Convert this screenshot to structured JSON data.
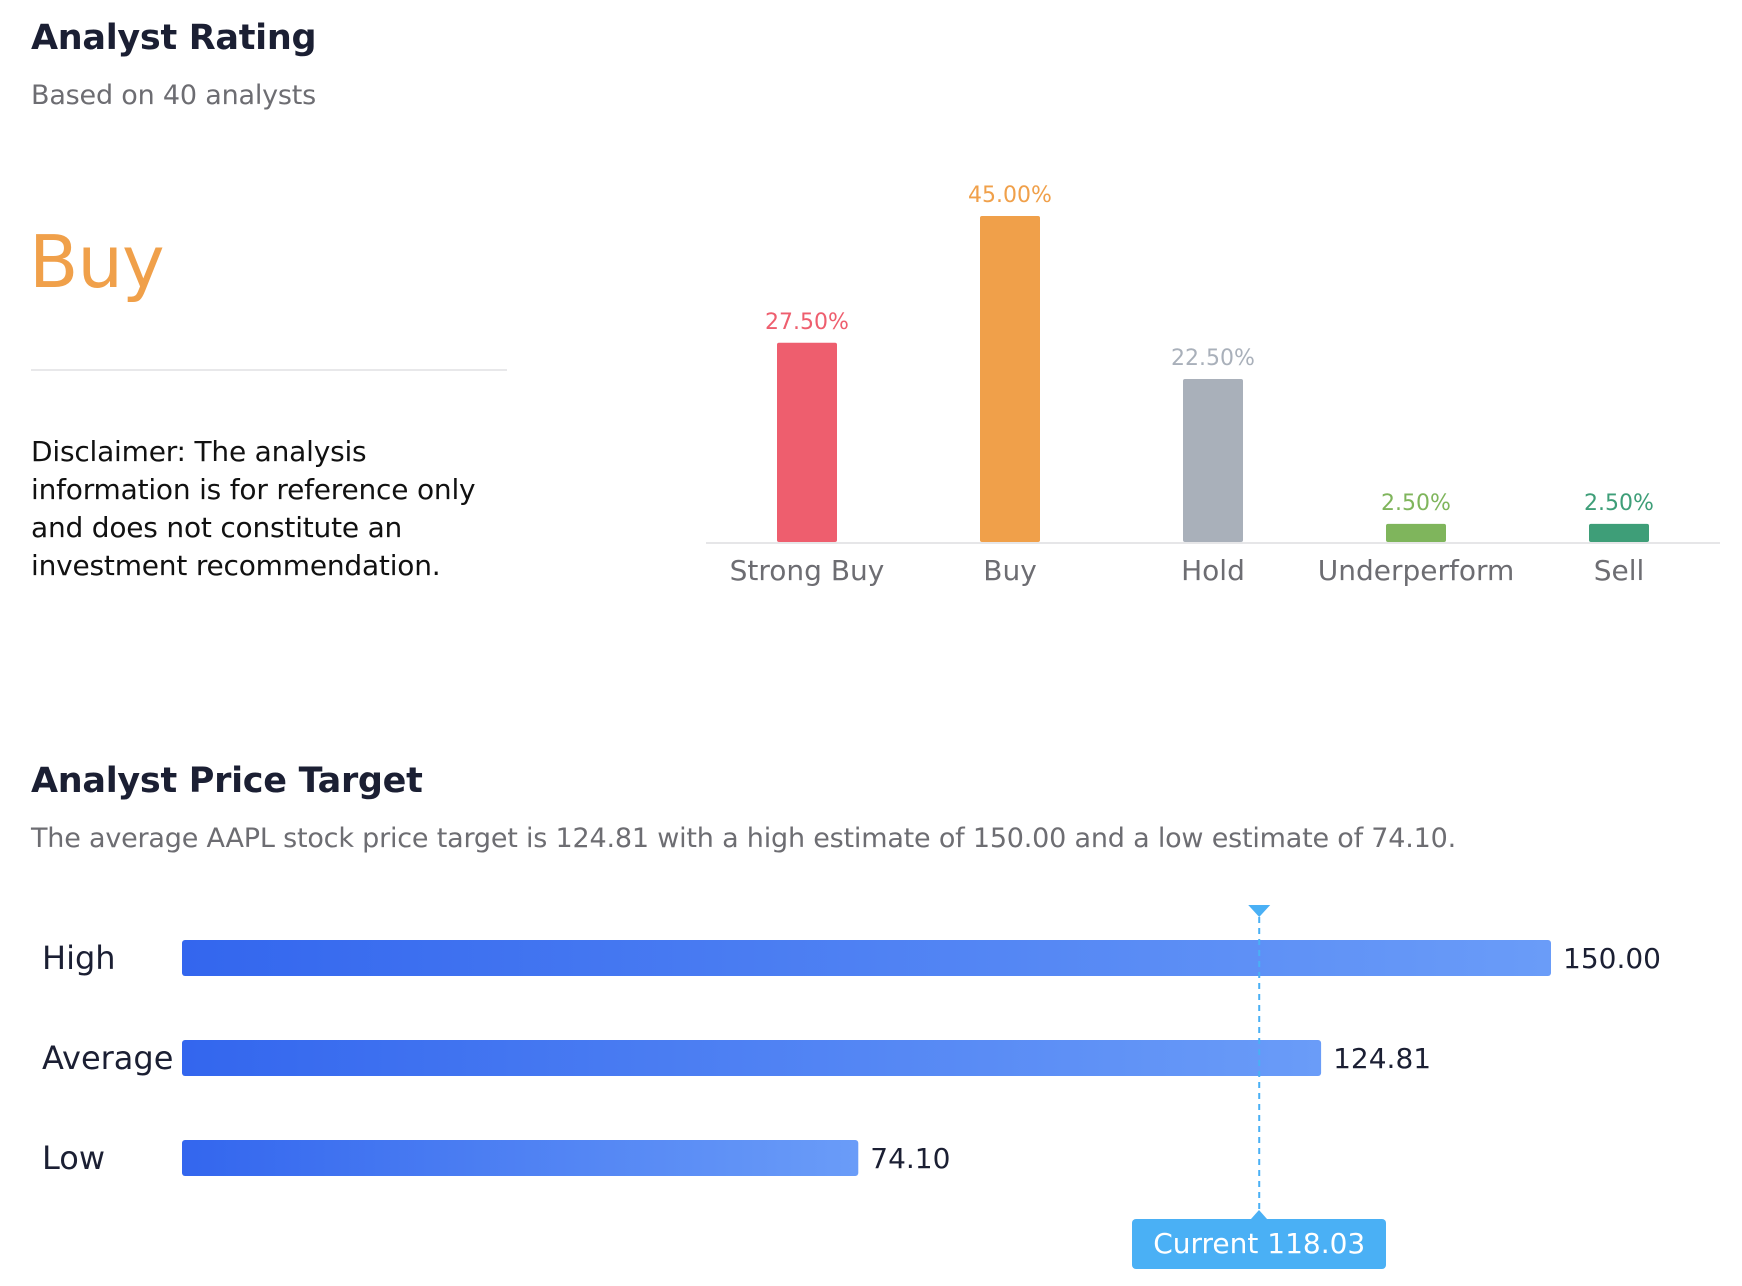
{
  "rating": {
    "title": "Analyst Rating",
    "subtitle": "Based on 40 analysts",
    "consensus": "Buy",
    "disclaimer": "Disclaimer: The analysis information is for reference only and does not constitute an investment recommendation."
  },
  "price_target": {
    "title": "Analyst Price Target",
    "description": "The average AAPL stock price target is 124.81 with a high estimate of 150.00 and a low estimate of 74.10.",
    "current_label": "Current 118.03"
  },
  "colors": {
    "strong_buy": "#ee5e6e",
    "buy": "#f0a04a",
    "hold": "#a9b0ba",
    "underperform": "#7fb55c",
    "sell": "#3e9e78",
    "bar_start": "#3366ee",
    "bar_end": "#6a9cf8",
    "current": "#4ab0f5"
  },
  "chart_data": [
    {
      "type": "bar",
      "title": "Analyst Rating Distribution",
      "categories": [
        "Strong Buy",
        "Buy",
        "Hold",
        "Underperform",
        "Sell"
      ],
      "values": [
        27.5,
        45.0,
        22.5,
        2.5,
        2.5
      ],
      "labels": [
        "27.50%",
        "45.00%",
        "22.50%",
        "2.50%",
        "2.50%"
      ],
      "unit": "%",
      "ylim": [
        0,
        50
      ]
    },
    {
      "type": "bar",
      "orientation": "horizontal",
      "title": "Analyst Price Target",
      "categories": [
        "High",
        "Average",
        "Low"
      ],
      "values": [
        150.0,
        124.81,
        74.1
      ],
      "labels": [
        "150.00",
        "124.81",
        "74.10"
      ],
      "current": 118.03,
      "xlim": [
        0,
        150
      ]
    }
  ]
}
